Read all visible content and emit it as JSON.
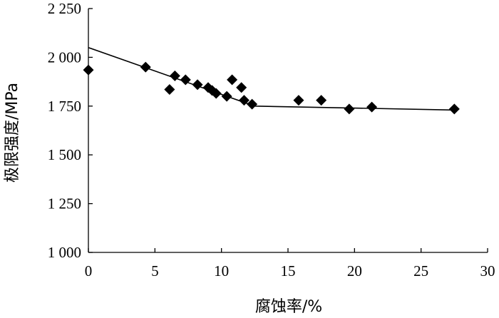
{
  "chart_data": {
    "type": "scatter",
    "title": "",
    "xlabel": "腐蚀率/%",
    "ylabel": "极限强度/MPa",
    "xlim": [
      0,
      30
    ],
    "ylim": [
      1000,
      2250
    ],
    "x_ticks": [
      0,
      5,
      10,
      15,
      20,
      25,
      30
    ],
    "x_tick_labels": [
      "0",
      "5",
      "10",
      "15",
      "20",
      "25",
      "30"
    ],
    "y_ticks": [
      1000,
      1250,
      1500,
      1750,
      2000,
      2250
    ],
    "y_tick_labels": [
      "1 000",
      "1 250",
      "1 500",
      "1 750",
      "2 000",
      "2 250"
    ],
    "grid": false,
    "legend": false,
    "marker": "diamond",
    "marker_color": "#000000",
    "series": [
      {
        "points": [
          [
            0.0,
            1935
          ],
          [
            4.3,
            1950
          ],
          [
            6.1,
            1835
          ],
          [
            6.5,
            1905
          ],
          [
            7.3,
            1885
          ],
          [
            8.2,
            1860
          ],
          [
            9.0,
            1845
          ],
          [
            9.3,
            1830
          ],
          [
            9.6,
            1815
          ],
          [
            10.4,
            1800
          ],
          [
            10.8,
            1885
          ],
          [
            11.5,
            1845
          ],
          [
            11.7,
            1780
          ],
          [
            12.3,
            1760
          ],
          [
            15.8,
            1780
          ],
          [
            17.5,
            1780
          ],
          [
            19.6,
            1735
          ],
          [
            21.3,
            1745
          ],
          [
            27.5,
            1735
          ]
        ]
      }
    ],
    "fit_line": {
      "color": "#000000",
      "points": [
        [
          0,
          2050
        ],
        [
          12.5,
          1750
        ],
        [
          27.5,
          1730
        ]
      ]
    }
  }
}
